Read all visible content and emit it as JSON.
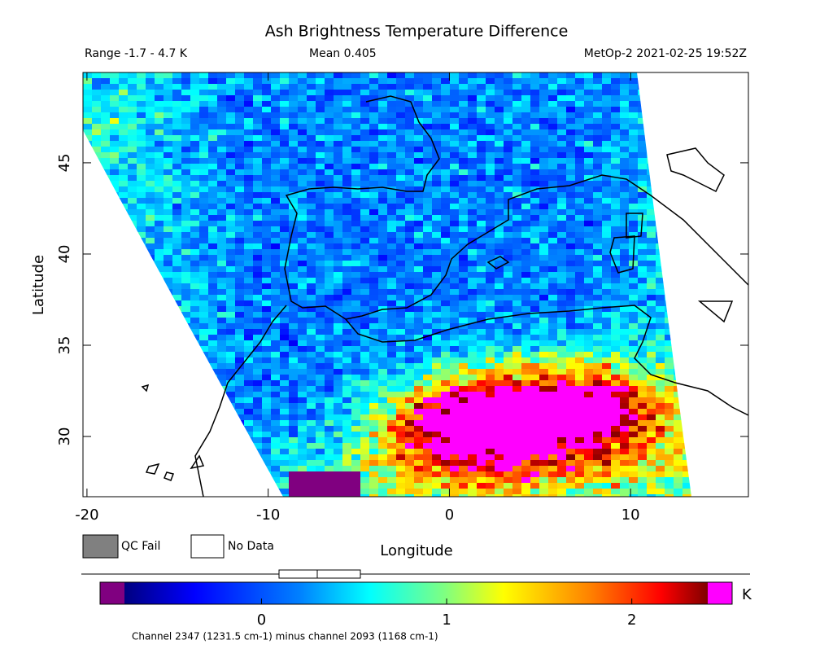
{
  "title": "Ash Brightness Temperature Difference",
  "range_label": "Range -1.7 - 4.7 K",
  "mean_label": "Mean 0.405",
  "source_label": "MetOp-2 2021-02-25 19:52Z",
  "map": {
    "xlim": [
      -20.22,
      16.5
    ],
    "ylim": [
      26.7,
      49.95
    ],
    "xticks": [
      -20,
      -10,
      0,
      10
    ],
    "yticks": [
      30,
      35,
      40,
      45
    ],
    "x_label": "Longitude",
    "y_label": "Latitude"
  },
  "legend": [
    {
      "label": "QC Fail",
      "color": "#808080"
    },
    {
      "label": "No Data",
      "color": "#ffffff"
    }
  ],
  "colorbar": {
    "lim": [
      -0.74,
      2.41
    ],
    "ticks": [
      0,
      1,
      2
    ],
    "unit": "K",
    "caption": "Channel 2347 (1231.5 cm-1) minus channel 2093 (1168 cm-1)"
  }
}
